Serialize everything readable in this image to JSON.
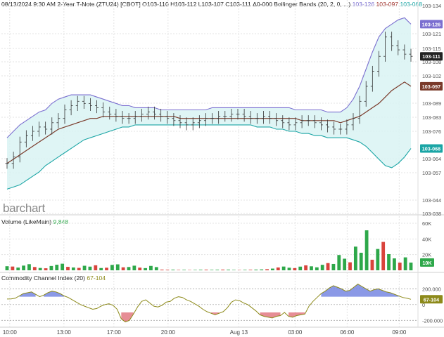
{
  "header": {
    "main": "08/13/2024 9:30 AM 2-Year T-Note (ZTU24) [CBOT] O103-110 H103-112 L103-107 C103-111 Δ0-000 Bollinger Bands (20, 2, 0, ...)",
    "upper": "103-126",
    "middle": "103-097",
    "lower": "103-068"
  },
  "logo": "barchart",
  "volume_panel": {
    "label": "Volume (LikeMain)",
    "value": "9,848"
  },
  "cci_panel": {
    "label": "Commodity Channel Index (20)",
    "value": "67-104"
  },
  "colors": {
    "up": "#2ea84a",
    "down": "#d9433c",
    "upper": "#7b6fd0",
    "middle": "#7a3a2a",
    "lower": "#1aa5a5",
    "band_fill": "#d9f3f3",
    "cci_line": "#8d8a1a",
    "cci_pos": "#6e7fe0",
    "cci_neg": "#e0707a",
    "last": "#222222"
  },
  "chart_data": [
    {
      "type": "candlestick",
      "title": "2-Year T-Note (ZTU24) [CBOT]",
      "y_ticks": [
        "103-134",
        "103-121",
        "103-115",
        "103-108",
        "103-102",
        "103-089",
        "103-083",
        "103-076",
        "103-064",
        "103-057",
        "103-044",
        "103-038"
      ],
      "y_range": [
        103.038,
        103.134
      ],
      "x_ticks": [
        "10:00",
        "13:00",
        "17:00",
        "20:00",
        "Aug 13",
        "03:00",
        "06:00",
        "09:00"
      ],
      "value_tags": [
        "103-126",
        "103-111",
        "103-097",
        "103-068"
      ],
      "price": [
        103.061,
        103.064,
        103.071,
        103.074,
        103.076,
        103.078,
        103.077,
        103.08,
        103.082,
        103.086,
        103.088,
        103.09,
        103.089,
        103.088,
        103.087,
        103.085,
        103.084,
        103.083,
        103.082,
        103.082,
        103.083,
        103.084,
        103.085,
        103.084,
        103.083,
        103.082,
        103.081,
        103.08,
        103.079,
        103.08,
        103.081,
        103.082,
        103.082,
        103.083,
        103.083,
        103.084,
        103.084,
        103.083,
        103.082,
        103.082,
        103.083,
        103.082,
        103.081,
        103.08,
        103.079,
        103.08,
        103.081,
        103.081,
        103.08,
        103.079,
        103.078,
        103.077,
        103.077,
        103.079,
        103.082,
        103.09,
        103.097,
        103.104,
        103.111,
        103.12,
        103.116,
        103.114,
        103.112,
        103.111
      ],
      "upper": [
        103.073,
        103.076,
        103.079,
        103.081,
        103.083,
        103.085,
        103.086,
        103.089,
        103.091,
        103.092,
        103.093,
        103.093,
        103.093,
        103.093,
        103.092,
        103.091,
        103.09,
        103.089,
        103.088,
        103.088,
        103.087,
        103.087,
        103.087,
        103.087,
        103.086,
        103.086,
        103.086,
        103.086,
        103.086,
        103.086,
        103.086,
        103.086,
        103.087,
        103.087,
        103.087,
        103.087,
        103.087,
        103.087,
        103.087,
        103.087,
        103.087,
        103.087,
        103.087,
        103.087,
        103.087,
        103.086,
        103.086,
        103.086,
        103.086,
        103.086,
        103.085,
        103.085,
        103.085,
        103.087,
        103.091,
        103.097,
        103.105,
        103.113,
        103.12,
        103.124,
        103.126,
        103.128,
        103.129,
        103.126
      ],
      "middle": [
        103.061,
        103.063,
        103.065,
        103.067,
        103.069,
        103.071,
        103.073,
        103.075,
        103.077,
        103.078,
        103.079,
        103.08,
        103.081,
        103.082,
        103.082,
        103.083,
        103.083,
        103.083,
        103.083,
        103.083,
        103.083,
        103.083,
        103.083,
        103.083,
        103.083,
        103.083,
        103.083,
        103.082,
        103.082,
        103.082,
        103.082,
        103.082,
        103.082,
        103.082,
        103.082,
        103.082,
        103.082,
        103.082,
        103.082,
        103.082,
        103.082,
        103.082,
        103.082,
        103.082,
        103.082,
        103.082,
        103.081,
        103.081,
        103.081,
        103.081,
        103.081,
        103.081,
        103.08,
        103.081,
        103.082,
        103.083,
        103.085,
        103.087,
        103.089,
        103.092,
        103.095,
        103.097,
        103.099,
        103.097
      ],
      "lower": [
        103.049,
        103.05,
        103.051,
        103.053,
        103.055,
        103.057,
        103.06,
        103.062,
        103.064,
        103.066,
        103.068,
        103.07,
        103.072,
        103.073,
        103.074,
        103.075,
        103.076,
        103.077,
        103.078,
        103.078,
        103.079,
        103.079,
        103.079,
        103.079,
        103.079,
        103.079,
        103.079,
        103.079,
        103.079,
        103.079,
        103.079,
        103.079,
        103.079,
        103.079,
        103.079,
        103.079,
        103.079,
        103.079,
        103.079,
        103.078,
        103.078,
        103.078,
        103.077,
        103.077,
        103.076,
        103.076,
        103.075,
        103.075,
        103.074,
        103.074,
        103.073,
        103.073,
        103.073,
        103.073,
        103.072,
        103.071,
        103.069,
        103.066,
        103.063,
        103.06,
        103.059,
        103.061,
        103.064,
        103.068
      ]
    },
    {
      "type": "bar",
      "title": "Volume (LikeMain)",
      "y_ticks": [
        "60K",
        "40K",
        "20K",
        "10K"
      ],
      "y_range": [
        0,
        60000
      ],
      "values": [
        5200,
        4800,
        3500,
        6000,
        7800,
        4200,
        3000,
        2600,
        5500,
        7100,
        8400,
        4400,
        3600,
        3100,
        5800,
        4700,
        6400,
        2900,
        3300,
        6900,
        7600,
        3800,
        4200,
        5900,
        3400,
        2800,
        5600,
        4100,
        900,
        700,
        800,
        500,
        600,
        400,
        500,
        700,
        800,
        600,
        700,
        900,
        800,
        500,
        400,
        600,
        700,
        900,
        1100,
        1400,
        2200,
        3600,
        4800,
        3300,
        2800,
        4700,
        6300,
        5100,
        3800,
        7000,
        9200,
        8100,
        19500,
        14800,
        10200,
        30200,
        22400,
        51000,
        13500,
        27200,
        36200,
        20600,
        15200,
        9800,
        16500,
        9848
      ],
      "directions": [
        "u",
        "d",
        "u",
        "u",
        "u",
        "d",
        "u",
        "d",
        "u",
        "u",
        "u",
        "d",
        "u",
        "d",
        "u",
        "u",
        "d",
        "u",
        "d",
        "u",
        "u",
        "d",
        "u",
        "u",
        "d",
        "u",
        "u",
        "u",
        "d",
        "d",
        "u",
        "d",
        "u",
        "d",
        "u",
        "u",
        "d",
        "u",
        "u",
        "d",
        "u",
        "u",
        "d",
        "u",
        "d",
        "u",
        "u",
        "d",
        "u",
        "d",
        "u",
        "u",
        "d",
        "u",
        "d",
        "u",
        "u",
        "u",
        "d",
        "u",
        "u",
        "u",
        "d",
        "u",
        "u",
        "u",
        "d",
        "u",
        "d",
        "u",
        "u",
        "d",
        "u",
        "u"
      ]
    },
    {
      "type": "line",
      "title": "Commodity Channel Index (20)",
      "y_ticks": [
        "200.000",
        "0",
        "-200.000"
      ],
      "y_range": [
        -260,
        310
      ],
      "values": [
        70,
        72,
        80,
        110,
        140,
        150,
        160,
        130,
        100,
        120,
        150,
        170,
        160,
        140,
        110,
        90,
        60,
        30,
        0,
        -20,
        -40,
        -60,
        -50,
        -20,
        0,
        10,
        -10,
        -60,
        -180,
        -220,
        -200,
        -120,
        -30,
        40,
        60,
        20,
        -20,
        -30,
        -10,
        30,
        40,
        80,
        100,
        90,
        60,
        40,
        10,
        -20,
        -60,
        -90,
        -110,
        -130,
        -110,
        -90,
        -40,
        30,
        60,
        50,
        20,
        0,
        -40,
        -80,
        -130,
        -150,
        -160,
        -170,
        -150,
        -140,
        -100,
        -150,
        -160,
        -140,
        -130,
        -120,
        -20,
        40,
        90,
        140,
        170,
        210,
        240,
        220,
        200,
        170,
        180,
        220,
        260,
        230,
        200,
        170,
        190,
        200,
        180,
        160,
        150,
        130,
        110,
        90,
        80,
        67
      ]
    }
  ]
}
